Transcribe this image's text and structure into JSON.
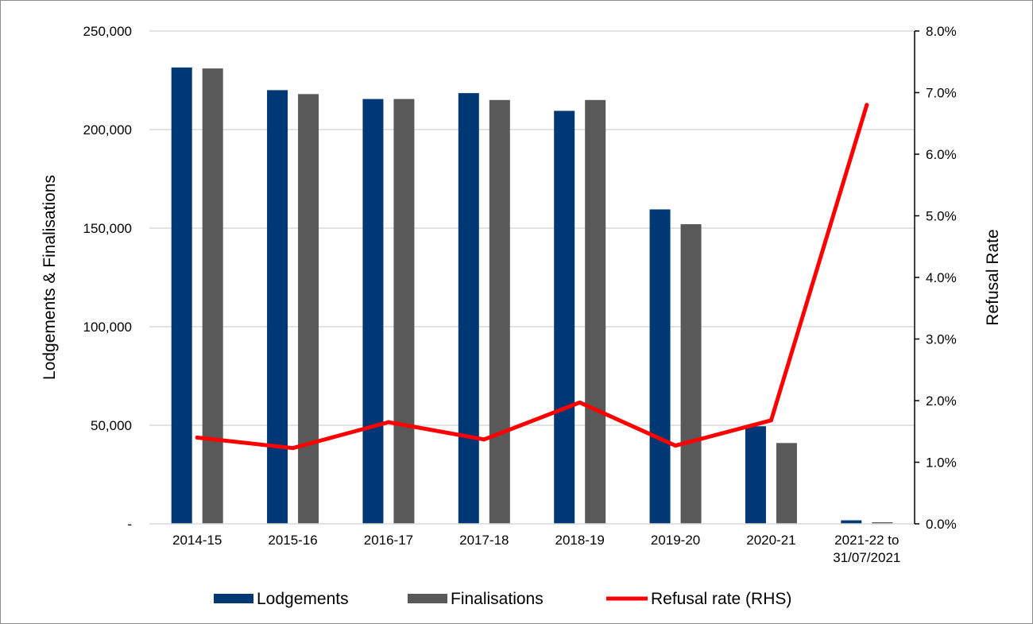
{
  "chart_data": {
    "type": "bar",
    "title": "",
    "categories": [
      "2014-15",
      "2015-16",
      "2016-17",
      "2017-18",
      "2018-19",
      "2019-20",
      "2020-21",
      "2021-22 to 31/07/2021"
    ],
    "series": [
      {
        "name": "Lodgements",
        "type": "bar",
        "axis": "left",
        "color": "#003876",
        "values": [
          231500,
          220000,
          215500,
          218500,
          209500,
          159500,
          49500,
          1800
        ]
      },
      {
        "name": "Finalisations",
        "type": "bar",
        "axis": "left",
        "color": "#595959",
        "values": [
          231000,
          218000,
          215500,
          215000,
          215000,
          152000,
          41000,
          800
        ]
      },
      {
        "name": "Refusal rate (RHS)",
        "type": "line",
        "axis": "right",
        "color": "#ff0000",
        "values": [
          1.4,
          1.23,
          1.65,
          1.37,
          1.97,
          1.27,
          1.68,
          6.8
        ]
      }
    ],
    "ylabel": "Lodgements & Finalisations",
    "y2label": "Refusal Rate",
    "ylim": [
      0,
      250000
    ],
    "y2lim": [
      0,
      8
    ],
    "yticks": [
      "-",
      "50,000",
      "100,000",
      "150,000",
      "200,000",
      "250,000"
    ],
    "y2ticks": [
      "0.0%",
      "1.0%",
      "2.0%",
      "3.0%",
      "4.0%",
      "5.0%",
      "6.0%",
      "7.0%",
      "8.0%"
    ],
    "grid": true,
    "legend": "bottom"
  }
}
